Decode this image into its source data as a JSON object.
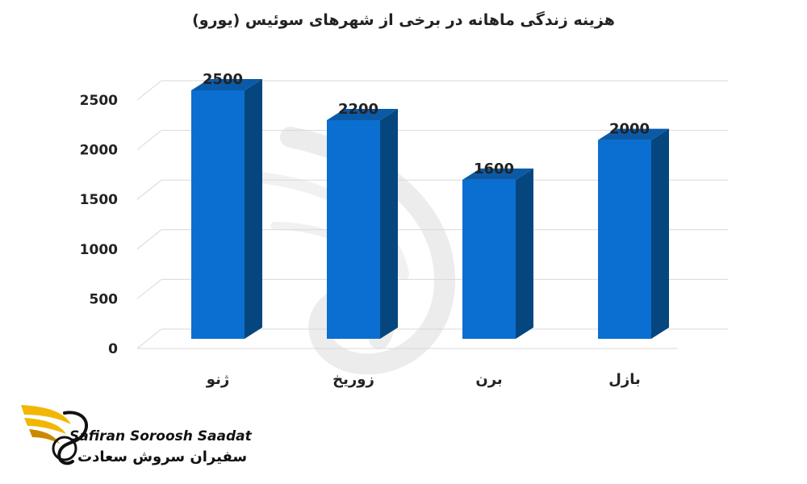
{
  "chart_data": {
    "type": "bar",
    "title": "هزینه زندگی ماهانه در برخی از شهرهای سوئیس (یورو)",
    "categories": [
      "ژنو",
      "زوریخ",
      "برن",
      "بازل"
    ],
    "values": [
      2500,
      2200,
      1600,
      2000
    ],
    "data_labels": [
      "2500",
      "2200",
      "1600",
      "2000"
    ],
    "xlabel": "",
    "ylabel": "",
    "ylim": [
      0,
      2500
    ],
    "yticks": [
      0,
      500,
      1000,
      1500,
      2000,
      2500
    ],
    "grid": true,
    "style": "3d-column",
    "colors": {
      "bar_front": "#0a6fd1",
      "bar_side": "#06467f",
      "bar_top": "#0b5aa8"
    }
  },
  "branding": {
    "name_en": "Safiran Soroosh Saadat",
    "name_fa": "سفیران سروش سعادت",
    "logo_icon": "phoenix-wing-icon",
    "logo_colors": {
      "wing": "#f2b705",
      "wing_dark": "#c98a00",
      "text": "#111111"
    }
  }
}
